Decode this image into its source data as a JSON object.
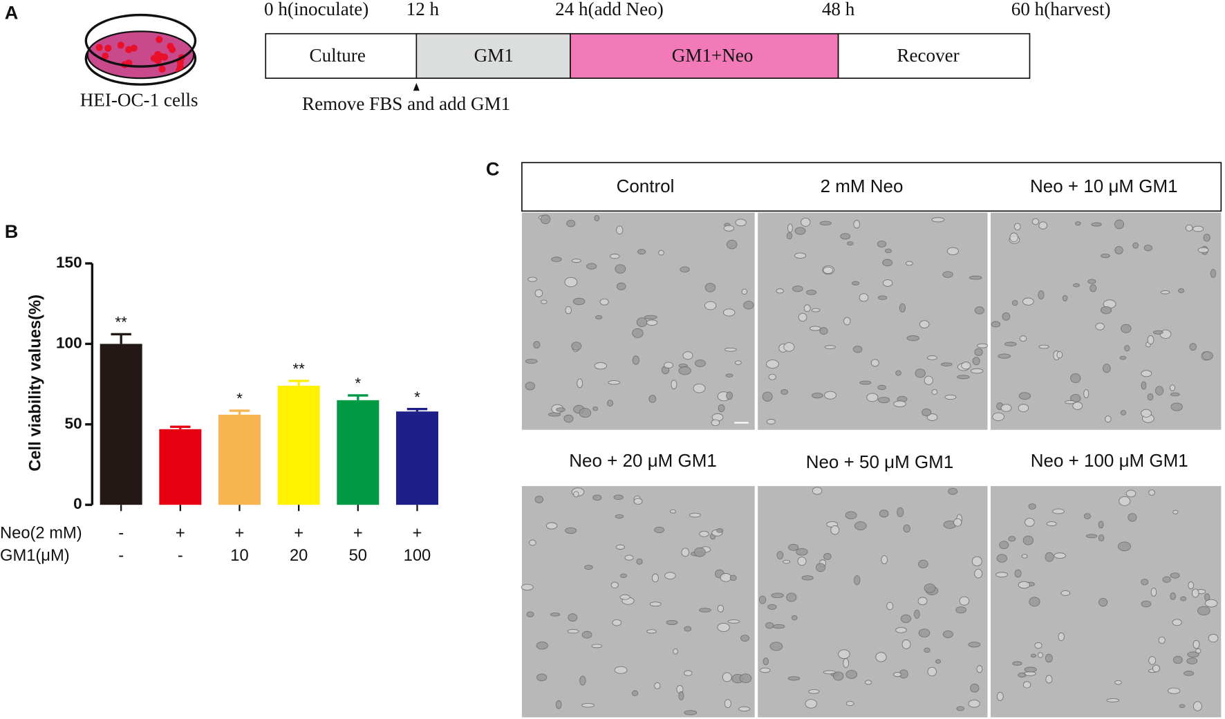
{
  "panel_a": {
    "label": "A",
    "cell_label": "HEI-OC-1 cells",
    "timepoints": [
      "0 h(inoculate)",
      "12 h",
      "24 h(add Neo)",
      "48 h",
      "60 h(harvest)"
    ],
    "phases": [
      "Culture",
      "GM1",
      "GM1+Neo",
      "Recover"
    ],
    "note": "Remove FBS and add GM1"
  },
  "chart_data": {
    "type": "bar",
    "panel_label": "B",
    "ylabel": "Cell viability values(%)",
    "categories": [
      null,
      null,
      null,
      null,
      null,
      null
    ],
    "values": [
      100,
      47,
      56,
      74,
      65,
      58
    ],
    "errors": [
      6,
      1.5,
      2.5,
      3,
      3,
      1.5
    ],
    "significance": [
      "**",
      null,
      "*",
      "**",
      "*",
      "*"
    ],
    "colors": [
      "#231815",
      "#e60012",
      "#f8b551",
      "#fff100",
      "#009944",
      "#1d2088"
    ],
    "ylim": [
      0,
      150
    ],
    "yticks": [
      0,
      50,
      100,
      150
    ],
    "treatment_rows": [
      {
        "name": "Neo(2 mM)",
        "labels": [
          "-",
          "+",
          "+",
          "+",
          "+",
          "+"
        ]
      },
      {
        "name": "GM1(μM)",
        "labels": [
          "-",
          "-",
          "10",
          "20",
          "50",
          "100"
        ]
      }
    ]
  },
  "panel_c": {
    "label": "C",
    "conditions": [
      "Control",
      "2 mM Neo",
      "Neo + 10 μM GM1",
      "Neo + 20 μM GM1",
      "Neo + 50 μM GM1",
      "Neo + 100 μM GM1"
    ]
  }
}
